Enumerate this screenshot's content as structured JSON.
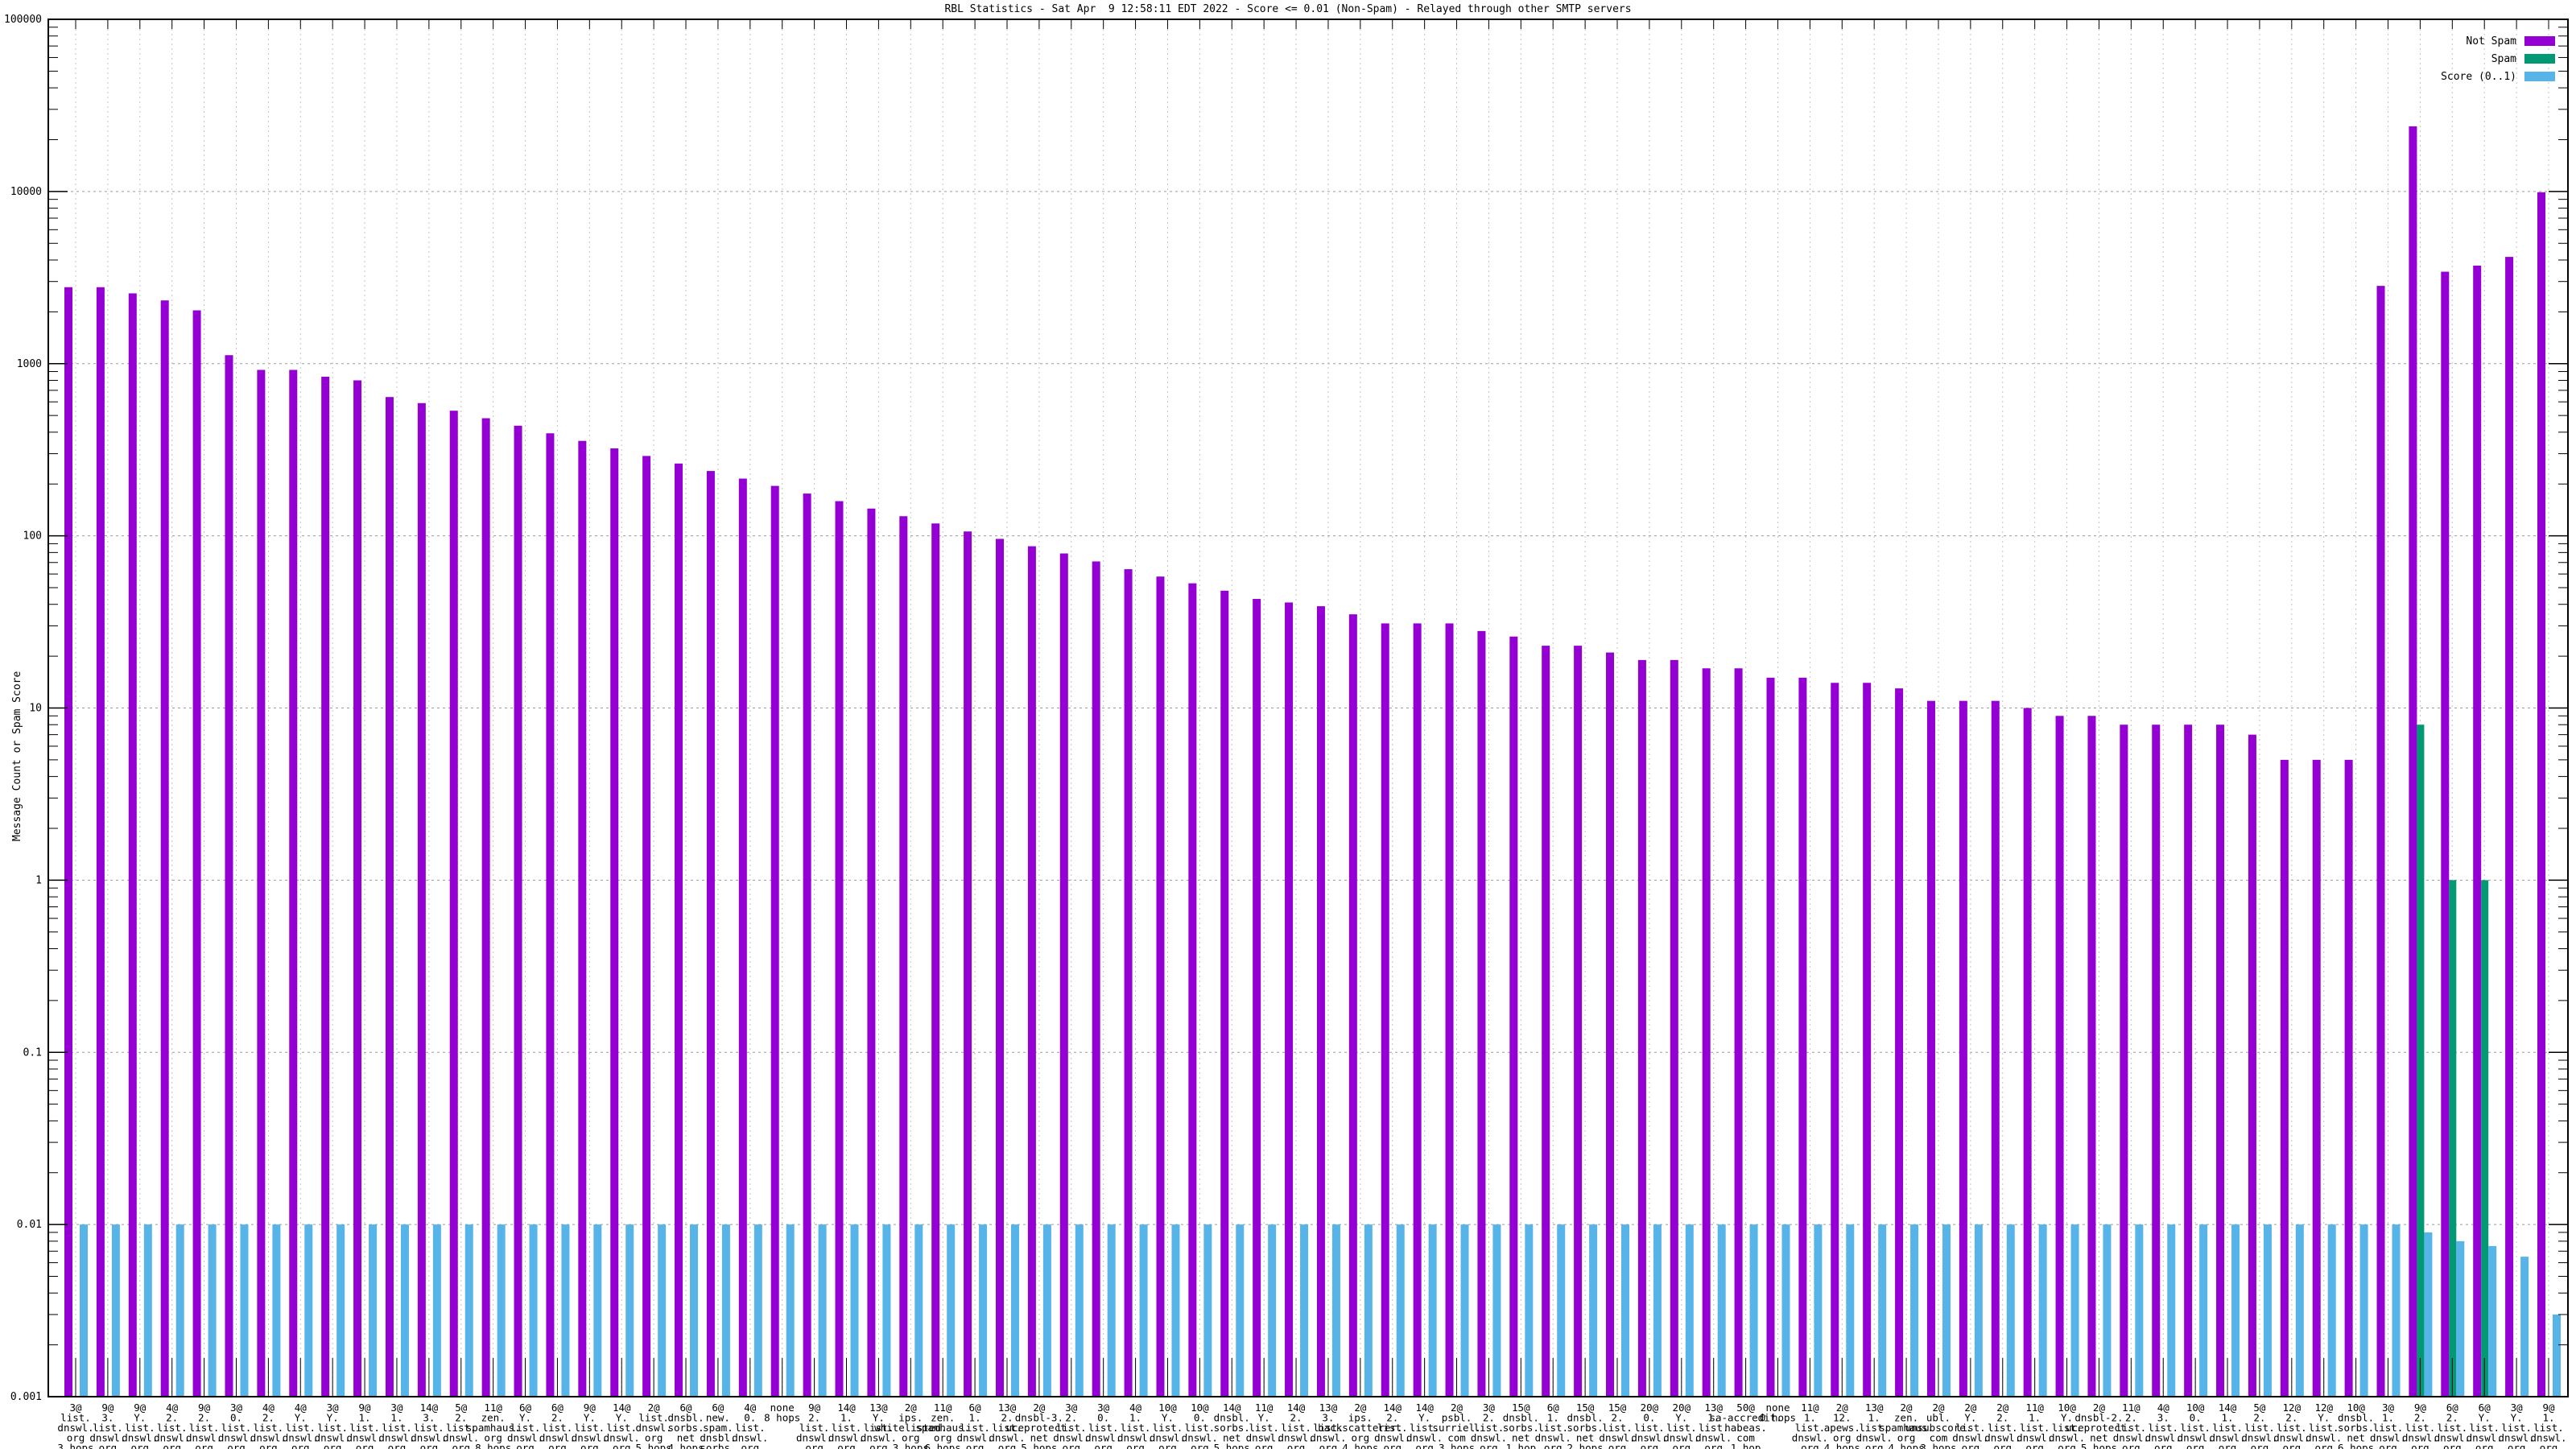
{
  "title": "RBL Statistics - Sat Apr  9 12:58:11 EDT 2022 - Score <= 0.01 (Non-Spam) - Relayed through other SMTP servers",
  "y_axis": {
    "label": "Message Count or Spam Score",
    "ticks": [
      "100000",
      "10000",
      "1000",
      "100",
      "10",
      "1",
      "0.1",
      "0.01",
      "0.001"
    ]
  },
  "legend": [
    {
      "label": "Not Spam",
      "color": "#9400d3"
    },
    {
      "label": "Spam",
      "color": "#009973"
    },
    {
      "label": "Score (0..1)",
      "color": "#56b4e9"
    }
  ],
  "colors": {
    "not_spam": "#9400d3",
    "spam": "#009973",
    "score": "#56b4e9",
    "axis": "#000000",
    "grid_major": "#9a9a9a",
    "grid_minor": "#c4c4c4",
    "background": "#ffffff"
  },
  "chart_data": {
    "type": "bar",
    "title": "RBL Statistics - Sat Apr  9 12:58:11 EDT 2022 - Score <= 0.01 (Non-Spam) - Relayed through other SMTP servers",
    "ylabel": "Message Count or Spam Score",
    "y_log_scale": true,
    "ylim": [
      0.001,
      100000
    ],
    "grid": true,
    "legend_position": "top-right",
    "series_names": [
      "Not Spam",
      "Spam",
      "Score (0..1)"
    ],
    "groups": [
      {
        "label_lines": [
          "3@",
          "list.",
          "dnswl.",
          "org",
          "3 hops"
        ],
        "not_spam": 2780,
        "spam": 0,
        "score": 0.01
      },
      {
        "label_lines": [
          "9@",
          "3.",
          "list.",
          "dnswl.",
          "org",
          "3 hops"
        ],
        "not_spam": 2780,
        "spam": 0,
        "score": 0.01
      },
      {
        "label_lines": [
          "9@",
          "Y.",
          "list.",
          "dnswl.",
          "org",
          "4 hops"
        ],
        "not_spam": 2560,
        "spam": 0,
        "score": 0.01
      },
      {
        "label_lines": [
          "4@",
          "2.",
          "list.",
          "dnswl.",
          "org",
          "2 hops"
        ],
        "not_spam": 2330,
        "spam": 0,
        "score": 0.01
      },
      {
        "label_lines": [
          "9@",
          "2.",
          "list.",
          "dnswl.",
          "org",
          "4 hops"
        ],
        "not_spam": 2040,
        "spam": 0,
        "score": 0.01
      },
      {
        "label_lines": [
          "3@",
          "0.",
          "list.",
          "dnswl.",
          "org",
          "3 hops"
        ],
        "not_spam": 1120,
        "spam": 0,
        "score": 0.01
      },
      {
        "label_lines": [
          "4@",
          "2.",
          "list.",
          "dnswl.",
          "org",
          "3 hops"
        ],
        "not_spam": 920,
        "spam": 0,
        "score": 0.01
      },
      {
        "label_lines": [
          "4@",
          "Y.",
          "list.",
          "dnswl.",
          "org",
          "3 hops"
        ],
        "not_spam": 920,
        "spam": 0,
        "score": 0.01
      },
      {
        "label_lines": [
          "3@",
          "Y.",
          "list.",
          "dnswl.",
          "org",
          "4 hops"
        ],
        "not_spam": 840,
        "spam": 0,
        "score": 0.01
      },
      {
        "label_lines": [
          "9@",
          "1.",
          "list.",
          "dnswl.",
          "org",
          "3 hops"
        ],
        "not_spam": 800,
        "spam": 0,
        "score": 0.01
      },
      {
        "label_lines": [
          "3@",
          "1.",
          "list.",
          "dnswl.",
          "org",
          "4 hops"
        ],
        "not_spam": 640,
        "spam": 0,
        "score": 0.01
      },
      {
        "label_lines": [
          "14@",
          "3.",
          "list.",
          "dnswl.",
          "org",
          "1 hop"
        ],
        "not_spam": 590,
        "spam": 0,
        "score": 0.01
      },
      {
        "label_lines": [
          "5@",
          "2.",
          "list.",
          "dnswl.",
          "org",
          "2 hops"
        ],
        "not_spam": 533,
        "spam": 0,
        "score": 0.01
      },
      {
        "label_lines": [
          "11@",
          "zen.",
          "spamhaus.",
          "org",
          "8 hops"
        ],
        "not_spam": 482,
        "spam": 0,
        "score": 0.01
      },
      {
        "label_lines": [
          "6@",
          "Y.",
          "list.",
          "dnswl.",
          "org",
          "3 hops"
        ],
        "not_spam": 436,
        "spam": 0,
        "score": 0.01
      },
      {
        "label_lines": [
          "6@",
          "2.",
          "list.",
          "dnswl.",
          "org",
          "3 hops"
        ],
        "not_spam": 394,
        "spam": 0,
        "score": 0.01
      },
      {
        "label_lines": [
          "9@",
          "Y.",
          "list.",
          "dnswl.",
          "org",
          "5 hops"
        ],
        "not_spam": 356,
        "spam": 0,
        "score": 0.01
      },
      {
        "label_lines": [
          "14@",
          "Y.",
          "list.",
          "dnswl.",
          "org",
          "2 hops"
        ],
        "not_spam": 322,
        "spam": 0,
        "score": 0.01
      },
      {
        "label_lines": [
          "2@",
          "list.",
          "dnswl.",
          "org",
          "5 hops"
        ],
        "not_spam": 291,
        "spam": 0,
        "score": 0.01
      },
      {
        "label_lines": [
          "6@",
          "dnsbl.",
          "sorbs.",
          "net",
          "4 hops"
        ],
        "not_spam": 263,
        "spam": 0,
        "score": 0.01
      },
      {
        "label_lines": [
          "6@",
          "new.",
          "spam.",
          "dnsbl.",
          "sorbs.",
          "net",
          "4 hops"
        ],
        "not_spam": 238,
        "spam": 0,
        "score": 0.01
      },
      {
        "label_lines": [
          "4@",
          "0.",
          "list.",
          "dnswl.",
          "org",
          "1 hop"
        ],
        "not_spam": 215,
        "spam": 0,
        "score": 0.01
      },
      {
        "label_lines": [
          "none",
          "8 hops"
        ],
        "not_spam": 195,
        "spam": 0,
        "score": 0.01
      },
      {
        "label_lines": [
          "9@",
          "2.",
          "list.",
          "dnswl.",
          "org",
          "5 hops"
        ],
        "not_spam": 176,
        "spam": 0,
        "score": 0.01
      },
      {
        "label_lines": [
          "14@",
          "1.",
          "list.",
          "dnswl.",
          "org",
          "1 hop"
        ],
        "not_spam": 159,
        "spam": 0,
        "score": 0.01
      },
      {
        "label_lines": [
          "13@",
          "Y.",
          "list.",
          "dnswl.",
          "org",
          "2 hops"
        ],
        "not_spam": 144,
        "spam": 0,
        "score": 0.01
      },
      {
        "label_lines": [
          "2@",
          "ips.",
          "whitelisted.",
          "org",
          "3 hops"
        ],
        "not_spam": 130,
        "spam": 0,
        "score": 0.01
      },
      {
        "label_lines": [
          "11@",
          "zen.",
          "spamhaus.",
          "org",
          "6 hops"
        ],
        "not_spam": 118,
        "spam": 0,
        "score": 0.01
      },
      {
        "label_lines": [
          "6@",
          "1.",
          "list.",
          "dnswl.",
          "org",
          "1 hop"
        ],
        "not_spam": 106,
        "spam": 0,
        "score": 0.01
      },
      {
        "label_lines": [
          "13@",
          "2.",
          "list.",
          "dnswl.",
          "org",
          "2 hops"
        ],
        "not_spam": 96,
        "spam": 0,
        "score": 0.01
      },
      {
        "label_lines": [
          "2@",
          "dnsbl-3.",
          "uceprotect.",
          "net",
          "5 hops"
        ],
        "not_spam": 87,
        "spam": 0,
        "score": 0.01
      },
      {
        "label_lines": [
          "3@",
          "2.",
          "list.",
          "dnswl.",
          "org",
          "4 hops"
        ],
        "not_spam": 79,
        "spam": 0,
        "score": 0.01
      },
      {
        "label_lines": [
          "3@",
          "0.",
          "list.",
          "dnswl.",
          "org",
          "4 hops"
        ],
        "not_spam": 71,
        "spam": 0,
        "score": 0.01
      },
      {
        "label_lines": [
          "4@",
          "1.",
          "list.",
          "dnswl.",
          "org",
          "1 hop"
        ],
        "not_spam": 64,
        "spam": 0,
        "score": 0.01
      },
      {
        "label_lines": [
          "10@",
          "Y.",
          "list.",
          "dnswl.",
          "org",
          "2 hops"
        ],
        "not_spam": 58,
        "spam": 0,
        "score": 0.01
      },
      {
        "label_lines": [
          "10@",
          "0.",
          "list.",
          "dnswl.",
          "org",
          "2 hops"
        ],
        "not_spam": 53,
        "spam": 0,
        "score": 0.01
      },
      {
        "label_lines": [
          "14@",
          "dnsbl.",
          "sorbs.",
          "net",
          "5 hops"
        ],
        "not_spam": 48,
        "spam": 0,
        "score": 0.01
      },
      {
        "label_lines": [
          "11@",
          "Y.",
          "list.",
          "dnswl.",
          "org",
          "4 hops"
        ],
        "not_spam": 43,
        "spam": 0,
        "score": 0.01
      },
      {
        "label_lines": [
          "14@",
          "2.",
          "list.",
          "dnswl.",
          "org",
          "2 hops"
        ],
        "not_spam": 41,
        "spam": 0,
        "score": 0.01
      },
      {
        "label_lines": [
          "13@",
          "3.",
          "list.",
          "dnswl.",
          "org",
          "2 hops"
        ],
        "not_spam": 39,
        "spam": 0,
        "score": 0.01
      },
      {
        "label_lines": [
          "2@",
          "ips.",
          "backscatterer.",
          "org",
          "4 hops"
        ],
        "not_spam": 35,
        "spam": 0,
        "score": 0.01
      },
      {
        "label_lines": [
          "14@",
          "2.",
          "list.",
          "dnswl.",
          "org",
          "4 hops"
        ],
        "not_spam": 31,
        "spam": 0,
        "score": 0.01
      },
      {
        "label_lines": [
          "14@",
          "Y.",
          "list.",
          "dnswl.",
          "org",
          "4 hops"
        ],
        "not_spam": 31,
        "spam": 0,
        "score": 0.01
      },
      {
        "label_lines": [
          "2@",
          "psbl.",
          "surriel.",
          "com",
          "3 hops"
        ],
        "not_spam": 31,
        "spam": 0,
        "score": 0.01
      },
      {
        "label_lines": [
          "3@",
          "2.",
          "list.",
          "dnswl.",
          "org",
          "3 hops"
        ],
        "not_spam": 28,
        "spam": 0,
        "score": 0.01
      },
      {
        "label_lines": [
          "15@",
          "dnsbl.",
          "sorbs.",
          "net",
          "1 hop"
        ],
        "not_spam": 26,
        "spam": 0,
        "score": 0.01
      },
      {
        "label_lines": [
          "6@",
          "1.",
          "list.",
          "dnswl.",
          "org",
          "4 hops"
        ],
        "not_spam": 23,
        "spam": 0,
        "score": 0.01
      },
      {
        "label_lines": [
          "15@",
          "dnsbl.",
          "sorbs.",
          "net",
          "2 hops"
        ],
        "not_spam": 23,
        "spam": 0,
        "score": 0.01
      },
      {
        "label_lines": [
          "15@",
          "2.",
          "list.",
          "dnswl.",
          "org",
          "1 hop"
        ],
        "not_spam": 21,
        "spam": 0,
        "score": 0.01
      },
      {
        "label_lines": [
          "20@",
          "0.",
          "list.",
          "dnswl.",
          "org",
          "2 hops"
        ],
        "not_spam": 19,
        "spam": 0,
        "score": 0.01
      },
      {
        "label_lines": [
          "20@",
          "Y.",
          "list.",
          "dnswl.",
          "org",
          "3 hops"
        ],
        "not_spam": 19,
        "spam": 0,
        "score": 0.01
      },
      {
        "label_lines": [
          "13@",
          "1.",
          "list.",
          "dnswl.",
          "org",
          "2 hops"
        ],
        "not_spam": 17,
        "spam": 0,
        "score": 0.01
      },
      {
        "label_lines": [
          "50@",
          "sa-accredit.",
          "habeas.",
          "com",
          "1 hop"
        ],
        "not_spam": 17,
        "spam": 0,
        "score": 0.01
      },
      {
        "label_lines": [
          "none",
          "0 hops"
        ],
        "not_spam": 15,
        "spam": 0,
        "score": 0.01
      },
      {
        "label_lines": [
          "11@",
          "1.",
          "list.",
          "dnswl.",
          "org",
          "4 hops"
        ],
        "not_spam": 15,
        "spam": 0,
        "score": 0.01
      },
      {
        "label_lines": [
          "2@",
          "12.",
          "apews.",
          "org",
          "4 hops"
        ],
        "not_spam": 14,
        "spam": 0,
        "score": 0.01
      },
      {
        "label_lines": [
          "13@",
          "1.",
          "list.",
          "dnswl.",
          "org",
          "1 hop"
        ],
        "not_spam": 14,
        "spam": 0,
        "score": 0.01
      },
      {
        "label_lines": [
          "2@",
          "zen.",
          "spamhaus.",
          "org",
          "4 hops"
        ],
        "not_spam": 13,
        "spam": 0,
        "score": 0.01
      },
      {
        "label_lines": [
          "2@",
          "ubl.",
          "unsubscore.",
          "com",
          "3 hops"
        ],
        "not_spam": 11,
        "spam": 0,
        "score": 0.01
      },
      {
        "label_lines": [
          "2@",
          "Y.",
          "list.",
          "dnswl.",
          "org",
          "1 hop"
        ],
        "not_spam": 11,
        "spam": 0,
        "score": 0.01
      },
      {
        "label_lines": [
          "2@",
          "2.",
          "list.",
          "dnswl.",
          "org",
          "1 hop"
        ],
        "not_spam": 11,
        "spam": 0,
        "score": 0.01
      },
      {
        "label_lines": [
          "11@",
          "1.",
          "list.",
          "dnswl.",
          "org",
          "3 hops"
        ],
        "not_spam": 10,
        "spam": 0,
        "score": 0.01
      },
      {
        "label_lines": [
          "10@",
          "Y.",
          "list.",
          "dnswl.",
          "org",
          "4 hops"
        ],
        "not_spam": 9,
        "spam": 0,
        "score": 0.01
      },
      {
        "label_lines": [
          "2@",
          "dnsbl-2.",
          "uceprotect.",
          "net",
          "5 hops"
        ],
        "not_spam": 9,
        "spam": 0,
        "score": 0.01
      },
      {
        "label_lines": [
          "11@",
          "2.",
          "list.",
          "dnswl.",
          "org",
          "4 hops"
        ],
        "not_spam": 8,
        "spam": 0,
        "score": 0.01
      },
      {
        "label_lines": [
          "4@",
          "3.",
          "list.",
          "dnswl.",
          "org",
          "2 hops"
        ],
        "not_spam": 8,
        "spam": 0,
        "score": 0.01
      },
      {
        "label_lines": [
          "10@",
          "0.",
          "list.",
          "dnswl.",
          "org",
          "4 hops"
        ],
        "not_spam": 8,
        "spam": 0,
        "score": 0.01
      },
      {
        "label_lines": [
          "14@",
          "1.",
          "list.",
          "dnswl.",
          "org",
          "2 hops"
        ],
        "not_spam": 8,
        "spam": 0,
        "score": 0.01
      },
      {
        "label_lines": [
          "5@",
          "2.",
          "list.",
          "dnswl.",
          "org",
          "4 hops"
        ],
        "not_spam": 7,
        "spam": 0,
        "score": 0.01
      },
      {
        "label_lines": [
          "12@",
          "2.",
          "list.",
          "dnswl.",
          "org",
          "1 hop"
        ],
        "not_spam": 5,
        "spam": 0,
        "score": 0.01
      },
      {
        "label_lines": [
          "12@",
          "Y.",
          "list.",
          "dnswl.",
          "org",
          "1 hop"
        ],
        "not_spam": 5,
        "spam": 0,
        "score": 0.01
      },
      {
        "label_lines": [
          "10@",
          "dnsbl.",
          "sorbs.",
          "net",
          "6 hops"
        ],
        "not_spam": 5,
        "spam": 0,
        "score": 0.01
      },
      {
        "label_lines": [
          "3@",
          "1.",
          "list.",
          "dnswl.",
          "org",
          "3 hops"
        ],
        "not_spam": 2830,
        "spam": 0,
        "score": 0.01
      },
      {
        "label_lines": [
          "9@",
          "2.",
          "list.",
          "dnswl.",
          "org",
          "2 hops"
        ],
        "not_spam": 23900,
        "spam": 8,
        "score": 0.009
      },
      {
        "label_lines": [
          "6@",
          "2.",
          "list.",
          "dnswl.",
          "org",
          "2 hops"
        ],
        "not_spam": 3420,
        "spam": 1,
        "score": 0.008
      },
      {
        "label_lines": [
          "6@",
          "Y.",
          "list.",
          "dnswl.",
          "org",
          "2 hops"
        ],
        "not_spam": 3710,
        "spam": 1,
        "score": 0.0075
      },
      {
        "label_lines": [
          "3@",
          "Y.",
          "list.",
          "dnswl.",
          "org",
          "3 hops"
        ],
        "not_spam": 4170,
        "spam": 0,
        "score": 0.0065
      },
      {
        "label_lines": [
          "9@",
          "1.",
          "list.",
          "dnswl.",
          "org",
          "1 hop"
        ],
        "not_spam": 9900,
        "spam": 0,
        "score": 0.003
      }
    ]
  }
}
